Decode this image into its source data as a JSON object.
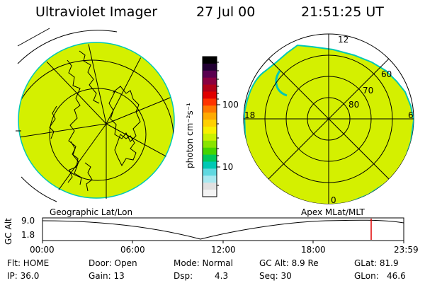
{
  "header": {
    "title": "Ultraviolet Imager",
    "date": "27 Jul 00",
    "time": "21:51:25 UT"
  },
  "colorbar": {
    "unit_label": "photon cm⁻²s⁻¹",
    "ticks": [
      "100",
      "10"
    ],
    "colors": [
      "#000000",
      "#220033",
      "#5a0050",
      "#8a0040",
      "#b00018",
      "#e00000",
      "#ff3300",
      "#ff7700",
      "#ffaa00",
      "#ffd000",
      "#f8f000",
      "#c8f000",
      "#88e400",
      "#44d400",
      "#00c85a",
      "#00c8b4",
      "#60d8e0",
      "#a8e8f0",
      "#e0e0e0",
      "#f4f4f4"
    ]
  },
  "maps": {
    "left_label": "Geographic Lat/Lon",
    "right_label": "Apex MLat/MLT",
    "mlt_labels": {
      "top": "12",
      "left": "18",
      "right": "6",
      "bottom": "0"
    },
    "mlat_labels": [
      "60",
      "70",
      "80"
    ],
    "fill_color": "#d4f000"
  },
  "altitude_plot": {
    "ylabel": "GC Alt",
    "y_ticks": [
      "9.0",
      "1.8"
    ],
    "x_ticks": [
      "00:00",
      "06:00",
      "12:00",
      "18:00",
      "23:59"
    ],
    "marker_color": "#e00000"
  },
  "status": {
    "flt": "Flt: HOME",
    "ip": "IP: 36.0",
    "door": "Door: Open",
    "gain": "Gain: 13",
    "mode": "Mode: Normal",
    "dsp_label": "Dsp:",
    "dsp_value": "4.3",
    "gc_alt": "GC Alt: 8.9 Re",
    "seq": "Seq: 30",
    "glat": "GLat: 81.9",
    "glon_label": "GLon:",
    "glon_value": "46.6"
  }
}
